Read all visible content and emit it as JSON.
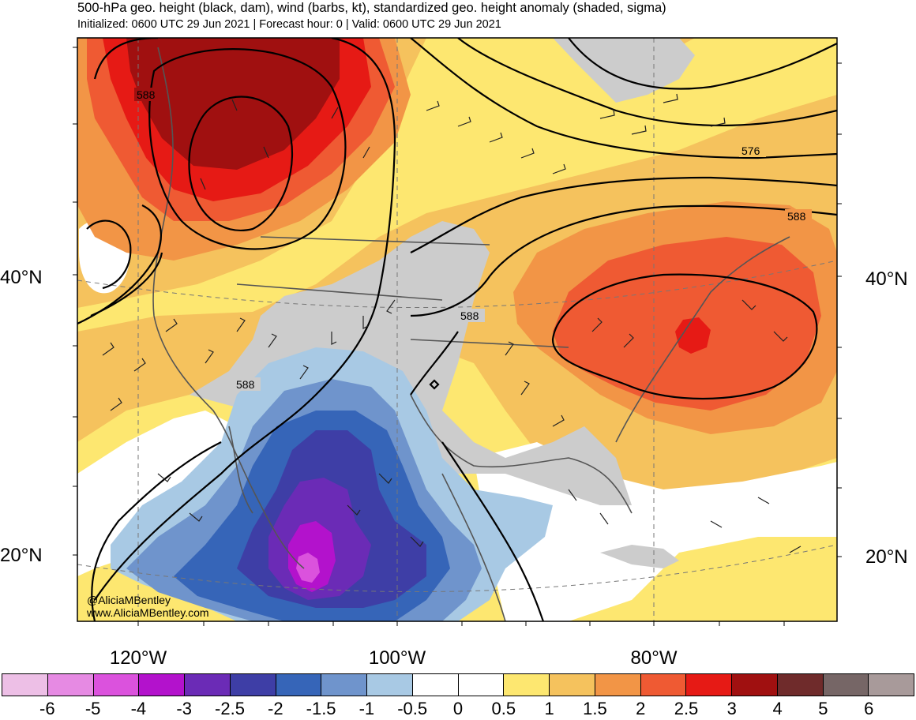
{
  "title": "500-hPa geo. height (black, dam), wind (barbs, kt), standardized geo. height anomaly (shaded, sigma)",
  "subtitle": "Initialized: 0600 UTC 29 Jun 2021 | Forecast hour: 0 | Valid: 0600 UTC 29 Jun 2021",
  "lat_labels": [
    "40°N",
    "20°N"
  ],
  "lon_labels": [
    "120°W",
    "100°W",
    "80°W"
  ],
  "contour_labels": [
    "588",
    "588",
    "588",
    "576",
    "588"
  ],
  "credit": {
    "handle": "@AliciaMBentley",
    "website": "www.AliciaMBentley.com"
  },
  "colorbar": {
    "colors": [
      "#edbfe6",
      "#e68ae3",
      "#db52dd",
      "#b312cc",
      "#6b2bb6",
      "#3e3ea6",
      "#3665b8",
      "#6f94cc",
      "#a8c9e4",
      "#ffffff",
      "#ffffff",
      "#fde770",
      "#f5c25d",
      "#f29546",
      "#ef5a33",
      "#e61a15",
      "#a01010",
      "#6f2b2b",
      "#766666",
      "#a89a9a"
    ],
    "tick_labels": [
      "-6",
      "-5",
      "-4",
      "-3",
      "-2.5",
      "-2",
      "-1.5",
      "-1",
      "-0.5",
      "0",
      "0.5",
      "1",
      "1.5",
      "2",
      "2.5",
      "3",
      "4",
      "5",
      "6"
    ]
  }
}
